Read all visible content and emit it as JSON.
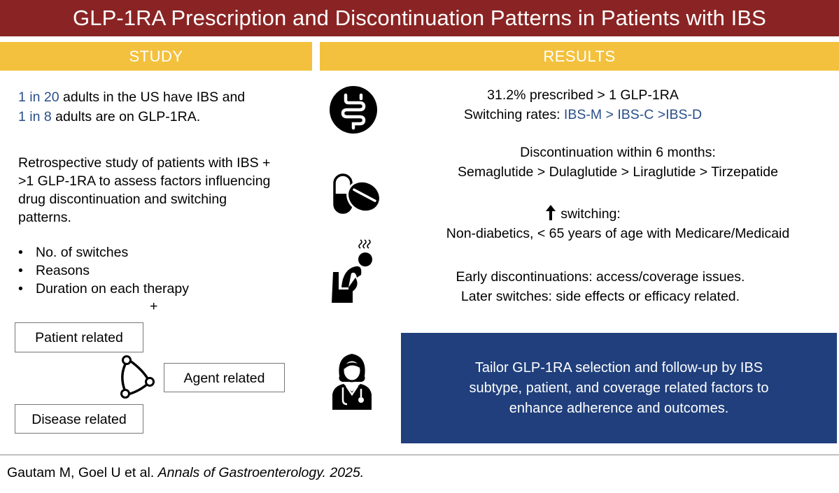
{
  "header": {
    "title": "GLP-1RA Prescription and Discontinuation Patterns in Patients with IBS"
  },
  "study": {
    "label": "STUDY",
    "stat_line1_highlight": "1 in 20",
    "stat_line1_rest": " adults in the US have IBS and",
    "stat_line2_highlight": "1 in 8",
    "stat_line2_rest": " adults are on GLP-1RA.",
    "description": [
      "Retrospective study of patients with IBS +",
      ">1 GLP-1RA to assess factors influencing",
      "drug discontinuation and switching",
      "patterns."
    ],
    "bullets": [
      "No. of switches",
      "Reasons",
      "Duration on each therapy"
    ],
    "plus": "+",
    "factors": {
      "patient": "Patient related",
      "agent": "Agent related",
      "disease": "Disease related"
    }
  },
  "results": {
    "label": "RESULTS",
    "prescribed": "31.2% prescribed > 1 GLP-1RA",
    "switching_prefix": "Switching rates: ",
    "switching_order": "IBS-M > IBS-C >IBS-D",
    "discontinuation_title": "Discontinuation within 6 months:",
    "discontinuation_order": "Semaglutide > Dulaglutide > Liraglutide > Tirzepatide",
    "switching_arrow_label": "switching:",
    "switching_population": "Non-diabetics, < 65 years of age with Medicare/Medicaid",
    "early": "Early discontinuations: access/coverage issues.",
    "later": "Later switches: side effects or efficacy related.",
    "conclusion": [
      "Tailor GLP-1RA selection and follow-up by IBS",
      "subtype, patient, and coverage related factors to",
      "enhance adherence and outcomes."
    ]
  },
  "citation": {
    "authors": "Gautam M, Goel U et al. ",
    "journal": "Annals of Gastroenterology. 2025."
  },
  "icons": [
    "intestine-icon",
    "pills-icon",
    "distressed-person-icon",
    "doctor-icon",
    "triangle-cycle-icon",
    "up-arrow-icon"
  ],
  "colors": {
    "header": "#8a2424",
    "band": "#f3c13d",
    "highlight": "#2a4f8a",
    "cta": "#203f7c"
  }
}
